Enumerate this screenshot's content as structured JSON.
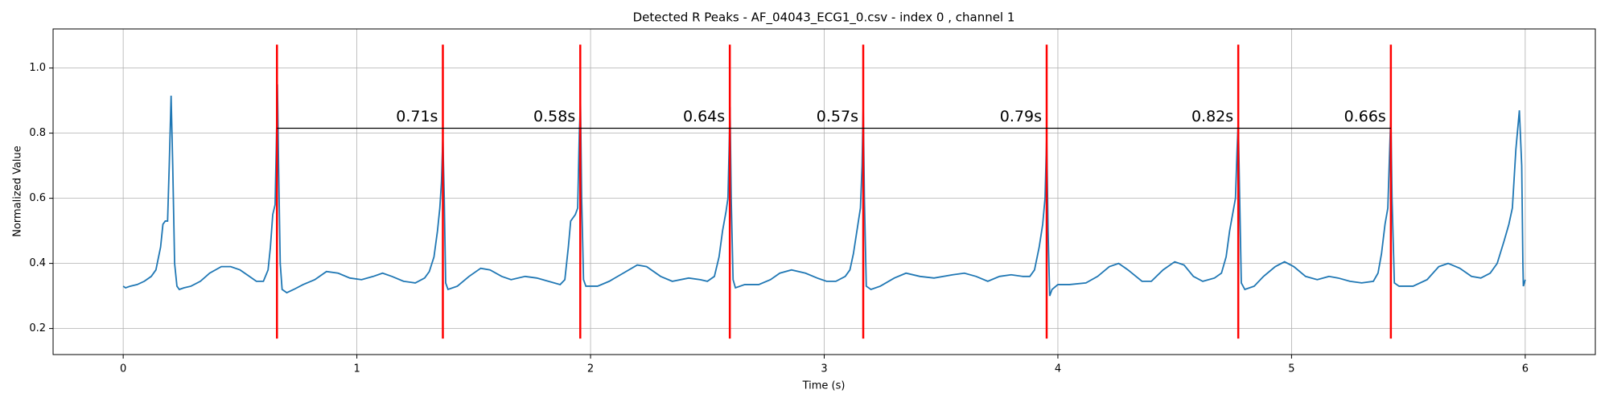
{
  "chart_data": {
    "type": "line",
    "title": "Detected R Peaks - AF_04043_ECG1_0.csv - index 0 , channel 1",
    "x_label": "Time (s)",
    "y_label": "Normalized Value",
    "xlim": [
      -0.3,
      6.3
    ],
    "ylim": [
      0.12,
      1.12
    ],
    "xticks": [
      0,
      1,
      2,
      3,
      4,
      5,
      6
    ],
    "yticks": [
      0.2,
      0.4,
      0.6,
      0.8,
      {
        "value": 1,
        "label": "1.0"
      }
    ],
    "grid": true,
    "color": "#1f77b4",
    "x": [
      0.0,
      0.01,
      0.03,
      0.06,
      0.09,
      0.12,
      0.14,
      0.16,
      0.17,
      0.18,
      0.19,
      0.197,
      0.205,
      0.212,
      0.22,
      0.23,
      0.24,
      0.26,
      0.29,
      0.33,
      0.37,
      0.42,
      0.46,
      0.5,
      0.54,
      0.57,
      0.6,
      0.62,
      0.63,
      0.64,
      0.65,
      0.655,
      0.66,
      0.665,
      0.672,
      0.68,
      0.7,
      0.73,
      0.77,
      0.82,
      0.87,
      0.92,
      0.97,
      1.02,
      1.07,
      1.11,
      1.15,
      1.2,
      1.25,
      1.29,
      1.31,
      1.33,
      1.345,
      1.355,
      1.362,
      1.368,
      1.374,
      1.38,
      1.39,
      1.43,
      1.48,
      1.53,
      1.57,
      1.62,
      1.66,
      1.72,
      1.77,
      1.82,
      1.87,
      1.89,
      1.905,
      1.915,
      1.935,
      1.945,
      1.952,
      1.957,
      1.962,
      1.97,
      1.98,
      2.03,
      2.08,
      2.14,
      2.2,
      2.24,
      2.3,
      2.35,
      2.42,
      2.47,
      2.5,
      2.53,
      2.55,
      2.565,
      2.58,
      2.588,
      2.593,
      2.597,
      2.602,
      2.61,
      2.62,
      2.66,
      2.72,
      2.77,
      2.81,
      2.86,
      2.92,
      2.97,
      3.01,
      3.05,
      3.09,
      3.11,
      3.125,
      3.14,
      3.155,
      3.162,
      3.167,
      3.172,
      3.18,
      3.2,
      3.24,
      3.3,
      3.35,
      3.41,
      3.47,
      3.55,
      3.6,
      3.65,
      3.7,
      3.75,
      3.8,
      3.85,
      3.88,
      3.9,
      3.92,
      3.935,
      3.945,
      3.952,
      3.958,
      3.965,
      3.975,
      4.0,
      4.05,
      4.12,
      4.17,
      4.22,
      4.26,
      4.3,
      4.36,
      4.4,
      4.45,
      4.5,
      4.54,
      4.58,
      4.62,
      4.67,
      4.7,
      4.72,
      4.735,
      4.75,
      4.76,
      4.767,
      4.772,
      4.778,
      4.785,
      4.8,
      4.84,
      4.88,
      4.93,
      4.97,
      5.01,
      5.06,
      5.11,
      5.16,
      5.2,
      5.25,
      5.3,
      5.35,
      5.37,
      5.385,
      5.4,
      5.412,
      5.42,
      5.425,
      5.43,
      5.44,
      5.46,
      5.52,
      5.58,
      5.63,
      5.67,
      5.72,
      5.77,
      5.81,
      5.85,
      5.88,
      5.91,
      5.93,
      5.945,
      5.96,
      5.975,
      5.985,
      5.99,
      5.992,
      6.0
    ],
    "values": [
      0.33,
      0.325,
      0.33,
      0.335,
      0.345,
      0.36,
      0.38,
      0.45,
      0.52,
      0.53,
      0.53,
      0.7,
      0.915,
      0.7,
      0.4,
      0.33,
      0.32,
      0.325,
      0.33,
      0.345,
      0.37,
      0.39,
      0.39,
      0.38,
      0.36,
      0.345,
      0.345,
      0.38,
      0.45,
      0.55,
      0.58,
      0.75,
      0.95,
      0.7,
      0.4,
      0.32,
      0.31,
      0.32,
      0.335,
      0.35,
      0.375,
      0.37,
      0.355,
      0.35,
      0.36,
      0.37,
      0.36,
      0.345,
      0.34,
      0.355,
      0.375,
      0.42,
      0.5,
      0.57,
      0.65,
      0.79,
      0.6,
      0.34,
      0.32,
      0.33,
      0.36,
      0.385,
      0.38,
      0.36,
      0.35,
      0.36,
      0.355,
      0.345,
      0.335,
      0.35,
      0.45,
      0.53,
      0.55,
      0.57,
      0.8,
      0.9,
      0.6,
      0.35,
      0.33,
      0.33,
      0.345,
      0.37,
      0.395,
      0.39,
      0.36,
      0.345,
      0.355,
      0.35,
      0.345,
      0.36,
      0.42,
      0.5,
      0.56,
      0.6,
      0.75,
      0.88,
      0.6,
      0.35,
      0.325,
      0.335,
      0.335,
      0.35,
      0.37,
      0.38,
      0.37,
      0.355,
      0.345,
      0.345,
      0.36,
      0.38,
      0.43,
      0.5,
      0.57,
      0.7,
      0.89,
      0.6,
      0.33,
      0.32,
      0.33,
      0.355,
      0.37,
      0.36,
      0.355,
      0.365,
      0.37,
      0.36,
      0.345,
      0.36,
      0.365,
      0.36,
      0.36,
      0.38,
      0.45,
      0.52,
      0.6,
      0.79,
      0.5,
      0.3,
      0.32,
      0.335,
      0.335,
      0.34,
      0.36,
      0.39,
      0.4,
      0.38,
      0.345,
      0.345,
      0.38,
      0.405,
      0.395,
      0.36,
      0.345,
      0.355,
      0.37,
      0.42,
      0.5,
      0.56,
      0.6,
      0.75,
      0.84,
      0.6,
      0.34,
      0.32,
      0.33,
      0.36,
      0.39,
      0.405,
      0.39,
      0.36,
      0.35,
      0.36,
      0.355,
      0.345,
      0.34,
      0.345,
      0.37,
      0.43,
      0.52,
      0.57,
      0.75,
      0.86,
      0.6,
      0.34,
      0.33,
      0.33,
      0.35,
      0.39,
      0.4,
      0.385,
      0.36,
      0.355,
      0.37,
      0.4,
      0.47,
      0.52,
      0.57,
      0.75,
      0.87,
      0.7,
      0.4,
      0.33,
      0.35
    ],
    "peaks": {
      "x": [
        0.658,
        1.368,
        1.956,
        2.596,
        3.167,
        3.952,
        4.772,
        5.425
      ],
      "ymin": 0.169,
      "ymax": 1.072,
      "color": "red"
    },
    "intervals": {
      "values": [
        0.71,
        0.58,
        0.64,
        0.57,
        0.79,
        0.82,
        0.66
      ],
      "value_labels": [
        "0.71s",
        "0.58s",
        "0.64s",
        "0.57s",
        "0.79s",
        "0.82s",
        "0.66s"
      ],
      "y": 0.815,
      "color": "black"
    }
  }
}
